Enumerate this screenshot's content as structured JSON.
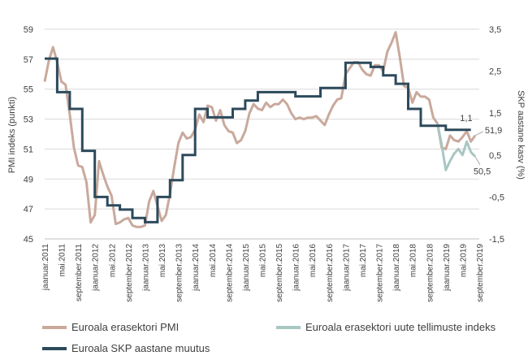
{
  "chart_data": {
    "type": "line",
    "title": "",
    "ylabel_left": "PMI indeks (punkti)",
    "ylabel_right": "SKP aastane kasv (%)",
    "y_left_range": [
      45,
      59
    ],
    "y_left_ticks": [
      "45",
      "47",
      "49",
      "51",
      "53",
      "55",
      "57",
      "59"
    ],
    "y_right_range": [
      -1.5,
      3.5
    ],
    "y_right_ticks": [
      "-1,5",
      "-0,5",
      "0,5",
      "1,5",
      "2,5",
      "3,5"
    ],
    "x_tick_labels": [
      "jaanuar.2011",
      "mai.2011",
      "september.2011",
      "jaanuar.2012",
      "mai.2012",
      "september.2012",
      "jaanuar.2013",
      "mai.2013",
      "september.2013",
      "jaanuar.2014",
      "mai.2014",
      "september.2014",
      "jaanuar.2015",
      "mai.2015",
      "september.2015",
      "jaanuar.2016",
      "mai.2016",
      "september.2016",
      "jaanuar.2017",
      "mai.2017",
      "september.2017",
      "jaanuar.2018",
      "mai.2018",
      "september.2018",
      "jaanuar.2019",
      "mai.2019",
      "september.2019"
    ],
    "grid": "horizontal",
    "legend_position": "bottom",
    "series": [
      {
        "name": "Euroala erasektori PMI",
        "axis": "left",
        "color": "#c9a99c",
        "x_start": "jaanuar.2011",
        "values": [
          55.5,
          56.9,
          57.8,
          56.8,
          55.5,
          55.3,
          53.3,
          51.1,
          49.9,
          49.8,
          48.8,
          46.1,
          46.6,
          50.2,
          49.3,
          48.5,
          47.9,
          46.0,
          46.1,
          46.3,
          46.4,
          45.9,
          45.8,
          45.8,
          45.9,
          47.5,
          48.2,
          47.2,
          46.2,
          46.6,
          48.0,
          49.8,
          51.4,
          52.1,
          51.7,
          51.8,
          52.3,
          53.3,
          52.8,
          53.9,
          53.8,
          52.9,
          53.6,
          52.6,
          52.2,
          52.1,
          51.4,
          51.6,
          52.2,
          53.4,
          54.0,
          53.7,
          53.6,
          54.1,
          53.8,
          54.0,
          54.0,
          54.3,
          54.0,
          53.4,
          53.0,
          53.1,
          53.0,
          53.1,
          53.1,
          53.2,
          52.9,
          52.6,
          53.3,
          53.9,
          54.3,
          54.4,
          56.0,
          56.4,
          56.8,
          56.8,
          56.3,
          56.0,
          55.9,
          56.6,
          56.6,
          56.2,
          57.5,
          58.1,
          58.8,
          57.1,
          55.2,
          55.1,
          54.1,
          54.8,
          54.5,
          54.5,
          54.3,
          53.1,
          52.7,
          51.1,
          51.0,
          51.9,
          51.6,
          51.5,
          51.8,
          52.2,
          51.5,
          51.9
        ],
        "end_label": "51,9"
      },
      {
        "name": "Euroala erasektori uute tellimuste indeks",
        "axis": "left",
        "color": "#a9c6c2",
        "x_start": "november.2018",
        "values": [
          52.7,
          51.3,
          49.6,
          50.2,
          50.7,
          51.0,
          50.6,
          51.5,
          50.8,
          50.5
        ],
        "end_label": "50,5"
      },
      {
        "name": "Euroala SKP aastane muutus",
        "axis": "right",
        "color": "#2d4a5c",
        "x_start": "jaanuar.2011",
        "x_step_months": 3,
        "values": [
          2.8,
          2.0,
          1.6,
          0.6,
          -0.5,
          -0.7,
          -0.8,
          -1.0,
          -1.1,
          -0.5,
          -0.1,
          0.5,
          1.6,
          1.4,
          1.4,
          1.6,
          1.8,
          2.0,
          2.0,
          2.0,
          1.9,
          1.9,
          2.1,
          2.1,
          2.7,
          2.7,
          2.6,
          2.4,
          2.2,
          1.6,
          1.2,
          1.2,
          1.1,
          1.1
        ],
        "end_label": "1,1"
      }
    ]
  }
}
